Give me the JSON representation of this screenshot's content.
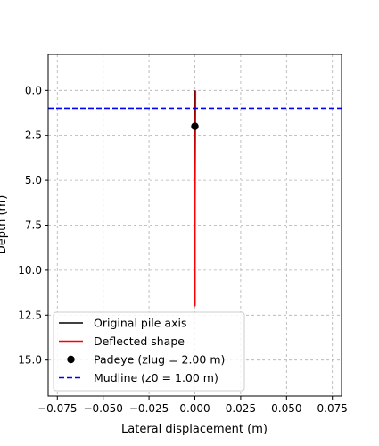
{
  "chart_data": {
    "type": "line",
    "title": "",
    "xlabel": "Lateral displacement (m)",
    "ylabel": "Depth (m)",
    "xlim": [
      -0.08,
      0.08
    ],
    "ylim": [
      17.0,
      -2.0
    ],
    "y_inverted": true,
    "grid": true,
    "legend_placement": "lower left",
    "x_ticks": [
      -0.075,
      -0.05,
      -0.025,
      0.0,
      0.025,
      0.05,
      0.075
    ],
    "x_tick_labels": [
      "−0.075",
      "−0.050",
      "−0.025",
      "0.000",
      "0.025",
      "0.050",
      "0.075"
    ],
    "y_ticks": [
      0.0,
      2.5,
      5.0,
      7.5,
      10.0,
      12.5,
      15.0
    ],
    "y_tick_labels": [
      "0.0",
      "2.5",
      "5.0",
      "7.5",
      "10.0",
      "12.5",
      "15.0"
    ],
    "series": [
      {
        "name": "Original pile axis",
        "kind": "line",
        "color": "#000000",
        "dash": "solid",
        "x": [
          0.0,
          0.0
        ],
        "y": [
          0.0,
          12.0
        ]
      },
      {
        "name": "Deflected shape",
        "kind": "line",
        "color": "#ff0000",
        "dash": "solid",
        "x": [
          0.0004,
          0.0003,
          0.0002,
          0.0001,
          0.0,
          0.0
        ],
        "y": [
          0.0,
          2.0,
          4.0,
          6.0,
          8.0,
          12.0
        ]
      },
      {
        "name": "Padeye (zlug = 2.00 m)",
        "kind": "point",
        "color": "#000000",
        "x": [
          0.0
        ],
        "y": [
          2.0
        ]
      },
      {
        "name": "Mudline (z0 = 1.00 m)",
        "kind": "hline",
        "color": "#0000ff",
        "dash": "dashed",
        "y": 1.0
      }
    ]
  }
}
